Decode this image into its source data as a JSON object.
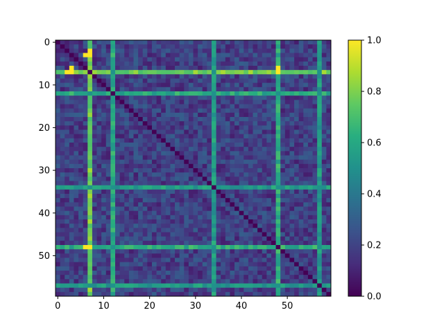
{
  "chart_data": {
    "type": "heatmap",
    "title": "",
    "xlabel": "",
    "ylabel": "",
    "size": 60,
    "colormap": "viridis",
    "colormap_stops": [
      "#440154",
      "#472d7b",
      "#3b528b",
      "#2c728e",
      "#21918c",
      "#28ae80",
      "#5ec962",
      "#addc30",
      "#fde725"
    ],
    "x_ticks": [
      0,
      10,
      20,
      30,
      40,
      50
    ],
    "y_ticks": [
      0,
      10,
      20,
      30,
      40,
      50
    ],
    "x_tick_labels": [
      "0",
      "10",
      "20",
      "30",
      "40",
      "50"
    ],
    "y_tick_labels": [
      "0",
      "10",
      "20",
      "30",
      "40",
      "50"
    ],
    "colorbar": {
      "range": [
        0.0,
        1.0
      ],
      "ticks": [
        0.0,
        0.2,
        0.4,
        0.6,
        0.8,
        1.0
      ],
      "tick_labels": [
        "0.0",
        "0.2",
        "0.4",
        "0.6",
        "0.8",
        "1.0"
      ]
    },
    "diagonal_value": 0.0,
    "background_range": [
      0.08,
      0.3
    ],
    "band_rows_cols": [
      {
        "index": 7,
        "value": 0.78
      },
      {
        "index": 12,
        "value": 0.6
      },
      {
        "index": 34,
        "value": 0.55
      },
      {
        "index": 48,
        "value": 0.62
      },
      {
        "index": 57,
        "value": 0.55
      }
    ],
    "band_intersection_value": 0.5,
    "highlight_cells": [
      {
        "row": 2,
        "col": 7,
        "value": 1.0
      },
      {
        "row": 3,
        "col": 7,
        "value": 1.0
      },
      {
        "row": 6,
        "col": 3,
        "value": 1.0
      },
      {
        "row": 6,
        "col": 48,
        "value": 1.0
      },
      {
        "row": 48,
        "col": 7,
        "value": 1.0
      }
    ]
  }
}
